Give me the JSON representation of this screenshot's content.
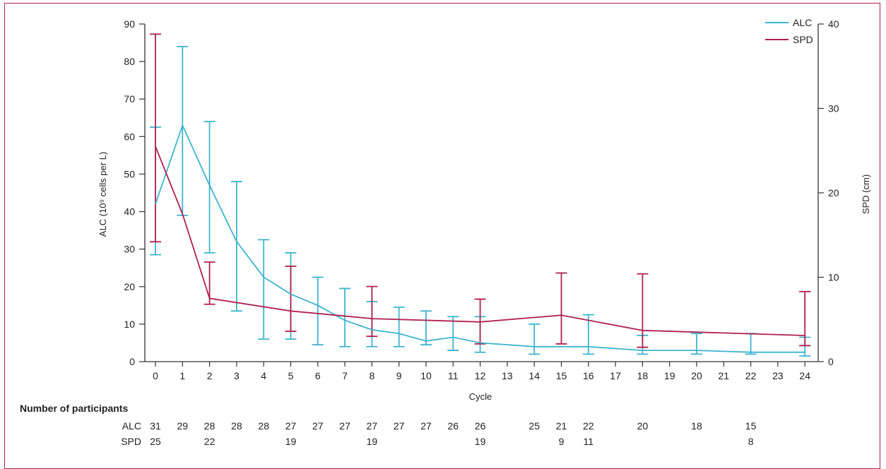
{
  "chart_data": {
    "type": "line",
    "xlabel": "Cycle",
    "ylabel_left": "ALC (10⁹ cells per L)",
    "ylabel_right": "SPD (cm)",
    "x_categories": [
      "0",
      "1",
      "2",
      "3",
      "4",
      "5",
      "6",
      "7",
      "8",
      "9",
      "10",
      "11",
      "12",
      "13",
      "14",
      "15",
      "16",
      "17",
      "18",
      "19",
      "20",
      "21",
      "22",
      "23",
      "24"
    ],
    "ylim_left": [
      0,
      90
    ],
    "yticks_left": [
      0,
      10,
      20,
      30,
      40,
      50,
      60,
      70,
      80,
      90
    ],
    "ylim_right": [
      0,
      40
    ],
    "yticks_right": [
      0,
      10,
      20,
      30,
      40
    ],
    "legend_position": "top-right",
    "series": [
      {
        "name": "ALC",
        "axis": "left",
        "color": "#3cb4cf",
        "points": [
          {
            "x": "0",
            "y": 42,
            "low": 28.5,
            "high": 62.5
          },
          {
            "x": "1",
            "y": 63,
            "low": 39,
            "high": 84
          },
          {
            "x": "2",
            "y": 47,
            "low": 29,
            "high": 64
          },
          {
            "x": "3",
            "y": 32,
            "low": 13.5,
            "high": 48
          },
          {
            "x": "4",
            "y": 22.5,
            "low": 6,
            "high": 32.5
          },
          {
            "x": "5",
            "y": 18,
            "low": 6,
            "high": 29
          },
          {
            "x": "6",
            "y": 15,
            "low": 4.5,
            "high": 22.5
          },
          {
            "x": "7",
            "y": 11,
            "low": 4,
            "high": 19.5
          },
          {
            "x": "8",
            "y": 8.5,
            "low": 4,
            "high": 16
          },
          {
            "x": "9",
            "y": 7.5,
            "low": 4,
            "high": 14.5
          },
          {
            "x": "10",
            "y": 5.5,
            "low": 4.5,
            "high": 13.5
          },
          {
            "x": "11",
            "y": 6.5,
            "low": 3,
            "high": 12
          },
          {
            "x": "12",
            "y": 5,
            "low": 2.5,
            "high": 12
          },
          {
            "x": "14",
            "y": 4,
            "low": 2,
            "high": 10
          },
          {
            "x": "15",
            "y": 4,
            "low": null,
            "high": null
          },
          {
            "x": "16",
            "y": 4,
            "low": 2,
            "high": 12.5
          },
          {
            "x": "18",
            "y": 3,
            "low": 2,
            "high": 7
          },
          {
            "x": "20",
            "y": 3,
            "low": 2,
            "high": 7.5
          },
          {
            "x": "22",
            "y": 2.5,
            "low": 2,
            "high": 7.5
          },
          {
            "x": "24",
            "y": 2.5,
            "low": 1.5,
            "high": 6.5
          }
        ]
      },
      {
        "name": "SPD",
        "axis": "right",
        "color": "#b0204e",
        "points": [
          {
            "x": "0",
            "y": 25.5,
            "low": 14.2,
            "high": 38.8
          },
          {
            "x": "1",
            "y": 17.5,
            "low": null,
            "high": null
          },
          {
            "x": "2",
            "y": 7.5,
            "low": 6.8,
            "high": 11.8
          },
          {
            "x": "5",
            "y": 6,
            "low": 3.6,
            "high": 11.3
          },
          {
            "x": "8",
            "y": 5.1,
            "low": 3,
            "high": 8.9
          },
          {
            "x": "12",
            "y": 4.7,
            "low": 2.1,
            "high": 7.4
          },
          {
            "x": "15",
            "y": 5.5,
            "low": 2.1,
            "high": 10.5
          },
          {
            "x": "18",
            "y": 3.7,
            "low": 1.7,
            "high": 10.4
          },
          {
            "x": "24",
            "y": 3.1,
            "low": 1.9,
            "high": 8.3
          }
        ]
      }
    ]
  },
  "participants": {
    "title": "Number of participants",
    "rows": [
      {
        "label": "ALC",
        "counts": [
          {
            "x": "0",
            "n": "31"
          },
          {
            "x": "1",
            "n": "29"
          },
          {
            "x": "2",
            "n": "28"
          },
          {
            "x": "3",
            "n": "28"
          },
          {
            "x": "4",
            "n": "28"
          },
          {
            "x": "5",
            "n": "27"
          },
          {
            "x": "6",
            "n": "27"
          },
          {
            "x": "7",
            "n": "27"
          },
          {
            "x": "8",
            "n": "27"
          },
          {
            "x": "9",
            "n": "27"
          },
          {
            "x": "10",
            "n": "27"
          },
          {
            "x": "11",
            "n": "26"
          },
          {
            "x": "12",
            "n": "26"
          },
          {
            "x": "14",
            "n": "25"
          },
          {
            "x": "15",
            "n": "21"
          },
          {
            "x": "16",
            "n": "22"
          },
          {
            "x": "18",
            "n": "20"
          },
          {
            "x": "20",
            "n": "18"
          },
          {
            "x": "22",
            "n": "15"
          }
        ]
      },
      {
        "label": "SPD",
        "counts": [
          {
            "x": "0",
            "n": "25"
          },
          {
            "x": "2",
            "n": "22"
          },
          {
            "x": "5",
            "n": "19"
          },
          {
            "x": "8",
            "n": "19"
          },
          {
            "x": "12",
            "n": "19"
          },
          {
            "x": "15",
            "n": "9"
          },
          {
            "x": "16",
            "n": "11"
          },
          {
            "x": "22",
            "n": "8"
          }
        ]
      }
    ]
  }
}
